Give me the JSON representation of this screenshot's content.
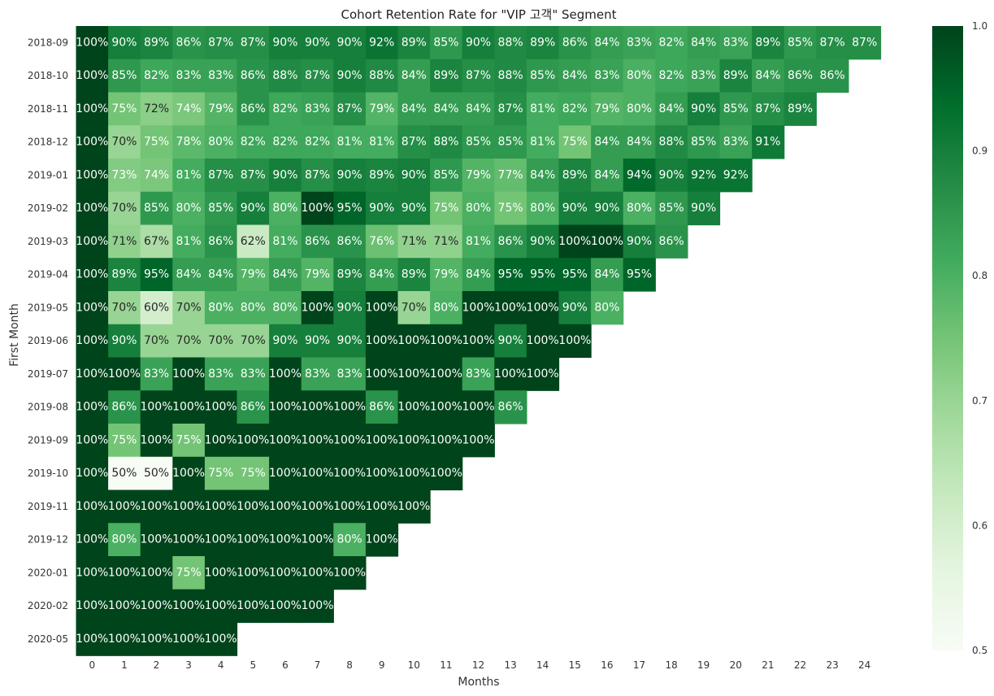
{
  "chart_data": {
    "type": "heatmap",
    "title": "Cohort Retention Rate for \"VIP 고객\" Segment",
    "xlabel": "Months",
    "ylabel": "First Month",
    "colormap": "Greens",
    "colorbar": {
      "min": 0.5,
      "max": 1.0,
      "ticks": [
        "0.5",
        "0.6",
        "0.7",
        "0.8",
        "0.9",
        "1.0"
      ]
    },
    "x_categories": [
      "0",
      "1",
      "2",
      "3",
      "4",
      "5",
      "6",
      "7",
      "8",
      "9",
      "10",
      "11",
      "12",
      "13",
      "14",
      "15",
      "16",
      "17",
      "18",
      "19",
      "20",
      "21",
      "22",
      "23",
      "24"
    ],
    "y_categories": [
      "2018-09",
      "2018-10",
      "2018-11",
      "2018-12",
      "2019-01",
      "2019-02",
      "2019-03",
      "2019-04",
      "2019-05",
      "2019-06",
      "2019-07",
      "2019-08",
      "2019-09",
      "2019-10",
      "2019-11",
      "2019-12",
      "2020-01",
      "2020-02",
      "2020-05"
    ],
    "values": [
      [
        1.0,
        0.9,
        0.89,
        0.86,
        0.87,
        0.87,
        0.9,
        0.9,
        0.9,
        0.92,
        0.89,
        0.85,
        0.9,
        0.88,
        0.89,
        0.86,
        0.84,
        0.83,
        0.82,
        0.84,
        0.83,
        0.89,
        0.85,
        0.87,
        0.87
      ],
      [
        1.0,
        0.85,
        0.82,
        0.83,
        0.83,
        0.86,
        0.88,
        0.87,
        0.9,
        0.88,
        0.84,
        0.89,
        0.87,
        0.88,
        0.85,
        0.84,
        0.83,
        0.8,
        0.82,
        0.83,
        0.89,
        0.84,
        0.86,
        0.86
      ],
      [
        1.0,
        0.75,
        0.72,
        0.74,
        0.79,
        0.86,
        0.82,
        0.83,
        0.87,
        0.79,
        0.84,
        0.84,
        0.84,
        0.87,
        0.81,
        0.82,
        0.79,
        0.8,
        0.84,
        0.9,
        0.85,
        0.87,
        0.89
      ],
      [
        1.0,
        0.7,
        0.75,
        0.78,
        0.8,
        0.82,
        0.82,
        0.82,
        0.81,
        0.81,
        0.87,
        0.88,
        0.85,
        0.85,
        0.81,
        0.75,
        0.84,
        0.84,
        0.88,
        0.85,
        0.83,
        0.91
      ],
      [
        1.0,
        0.73,
        0.74,
        0.81,
        0.87,
        0.87,
        0.9,
        0.87,
        0.9,
        0.89,
        0.9,
        0.85,
        0.79,
        0.77,
        0.84,
        0.89,
        0.84,
        0.94,
        0.9,
        0.92,
        0.92
      ],
      [
        1.0,
        0.7,
        0.85,
        0.8,
        0.85,
        0.9,
        0.8,
        1.0,
        0.95,
        0.9,
        0.9,
        0.75,
        0.8,
        0.75,
        0.8,
        0.9,
        0.9,
        0.8,
        0.85,
        0.9
      ],
      [
        1.0,
        0.71,
        0.67,
        0.81,
        0.86,
        0.62,
        0.81,
        0.86,
        0.86,
        0.76,
        0.71,
        0.71,
        0.81,
        0.86,
        0.9,
        1.0,
        1.0,
        0.9,
        0.86
      ],
      [
        1.0,
        0.89,
        0.95,
        0.84,
        0.84,
        0.79,
        0.84,
        0.79,
        0.89,
        0.84,
        0.89,
        0.79,
        0.84,
        0.95,
        0.95,
        0.95,
        0.84,
        0.95
      ],
      [
        1.0,
        0.7,
        0.6,
        0.7,
        0.8,
        0.8,
        0.8,
        1.0,
        0.9,
        1.0,
        0.7,
        0.8,
        1.0,
        1.0,
        1.0,
        0.9,
        0.8
      ],
      [
        1.0,
        0.9,
        0.7,
        0.7,
        0.7,
        0.7,
        0.9,
        0.9,
        0.9,
        1.0,
        1.0,
        1.0,
        1.0,
        0.9,
        1.0,
        1.0
      ],
      [
        1.0,
        1.0,
        0.83,
        1.0,
        0.83,
        0.83,
        1.0,
        0.83,
        0.83,
        1.0,
        1.0,
        1.0,
        0.83,
        1.0,
        1.0
      ],
      [
        1.0,
        0.86,
        1.0,
        1.0,
        1.0,
        0.86,
        1.0,
        1.0,
        1.0,
        0.86,
        1.0,
        1.0,
        1.0,
        0.86
      ],
      [
        1.0,
        0.75,
        1.0,
        0.75,
        1.0,
        1.0,
        1.0,
        1.0,
        1.0,
        1.0,
        1.0,
        1.0,
        1.0
      ],
      [
        1.0,
        0.5,
        0.5,
        1.0,
        0.75,
        0.75,
        1.0,
        1.0,
        1.0,
        1.0,
        1.0,
        1.0
      ],
      [
        1.0,
        1.0,
        1.0,
        1.0,
        1.0,
        1.0,
        1.0,
        1.0,
        1.0,
        1.0,
        1.0
      ],
      [
        1.0,
        0.8,
        1.0,
        1.0,
        1.0,
        1.0,
        1.0,
        1.0,
        0.8,
        1.0
      ],
      [
        1.0,
        1.0,
        1.0,
        0.75,
        1.0,
        1.0,
        1.0,
        1.0,
        1.0
      ],
      [
        1.0,
        1.0,
        1.0,
        1.0,
        1.0,
        1.0,
        1.0,
        1.0
      ],
      [
        1.0,
        1.0,
        1.0,
        1.0,
        1.0
      ]
    ]
  }
}
